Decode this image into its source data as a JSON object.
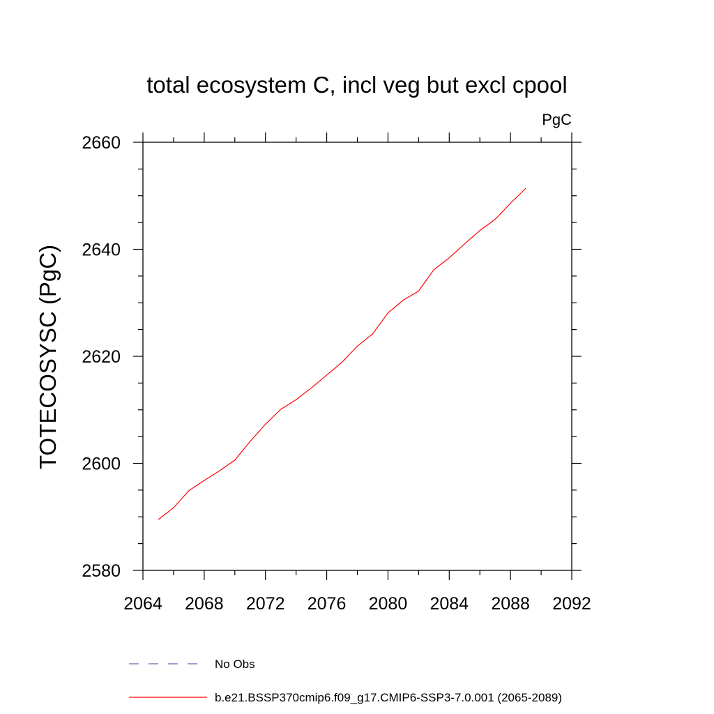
{
  "chart_data": {
    "type": "line",
    "title": "total ecosystem C, incl veg but excl cpool",
    "units": "PgC",
    "ylabel": "TOTECOSYSC  (PgC)",
    "xlabel": "",
    "xlim": [
      2064,
      2092
    ],
    "ylim": [
      2580,
      2660
    ],
    "x_ticks": [
      2064,
      2068,
      2072,
      2076,
      2080,
      2084,
      2088,
      2092
    ],
    "y_ticks": [
      2580,
      2600,
      2620,
      2640,
      2660
    ],
    "x_minor_step": 2,
    "y_minor_step": 5,
    "grid": false,
    "legend_position": "bottom",
    "series": [
      {
        "name": "No Obs",
        "color": "#6f5fb0",
        "style": "dashed",
        "x": [],
        "y": []
      },
      {
        "name": "b.e21.BSSP370cmip6.f09_g17.CMIP6-SSP3-7.0.001 (2065-2089)",
        "color": "#ff0000",
        "style": "solid",
        "x": [
          2065,
          2066,
          2067,
          2068,
          2069,
          2070,
          2071,
          2072,
          2073,
          2074,
          2075,
          2076,
          2077,
          2078,
          2079,
          2080,
          2081,
          2082,
          2083,
          2084,
          2085,
          2086,
          2087,
          2088,
          2089
        ],
        "y": [
          2589.5,
          2591.7,
          2594.9,
          2596.8,
          2598.6,
          2600.6,
          2604.1,
          2607.3,
          2610.1,
          2611.9,
          2614.1,
          2616.5,
          2618.9,
          2621.9,
          2624.2,
          2628.1,
          2630.5,
          2632.2,
          2636.2,
          2638.4,
          2641.0,
          2643.5,
          2645.6,
          2648.6,
          2651.4
        ]
      }
    ]
  }
}
